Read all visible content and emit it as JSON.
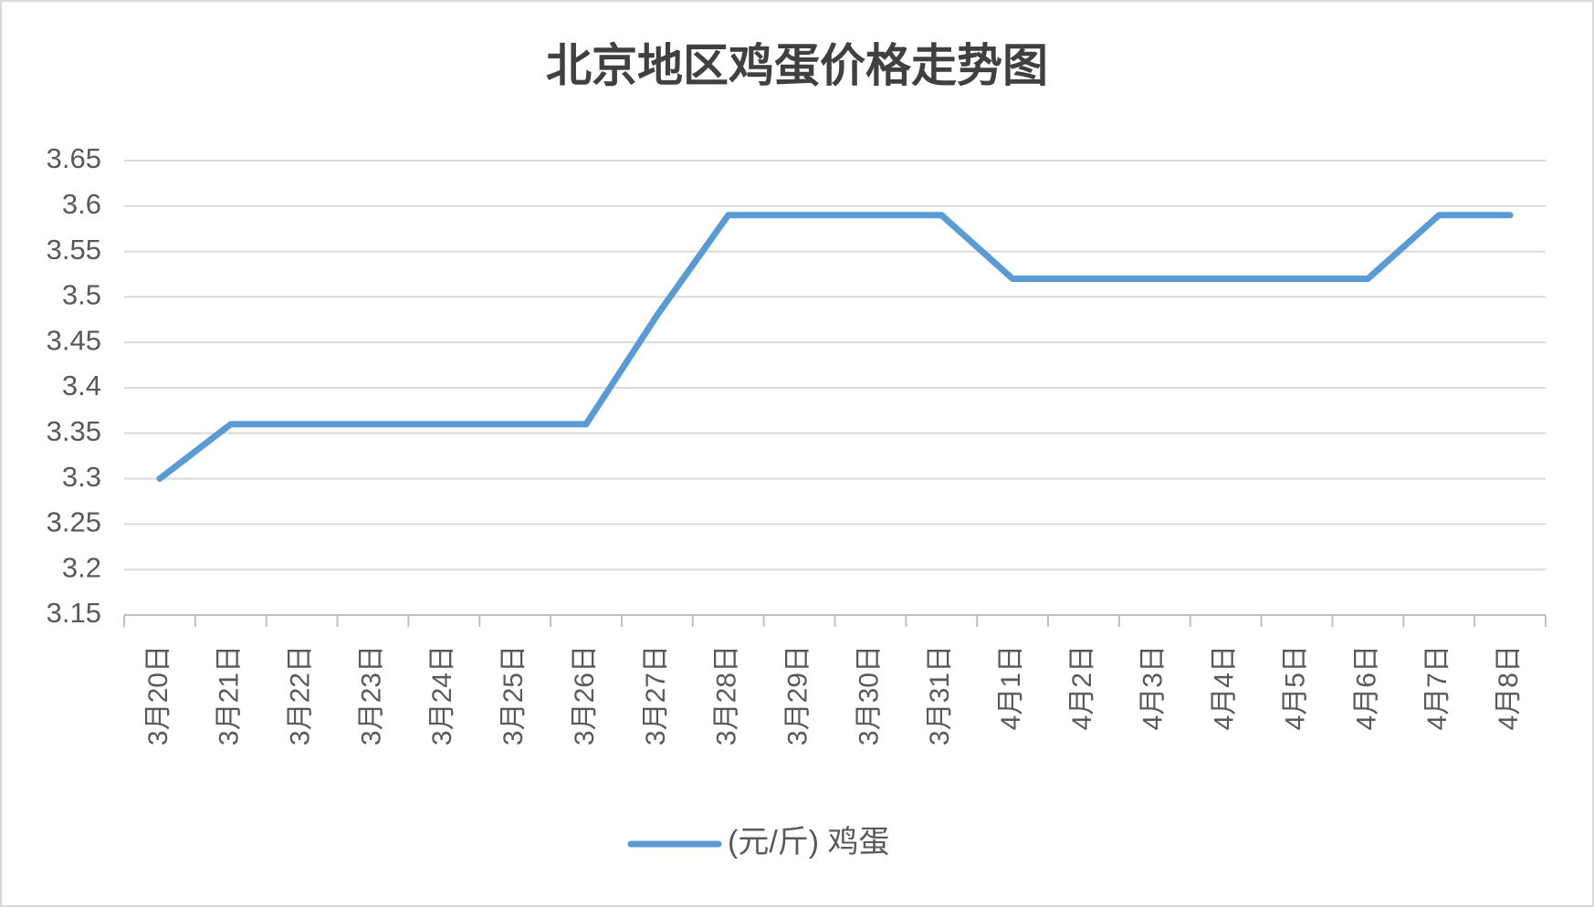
{
  "chart_data": {
    "type": "line",
    "title": "北京地区鸡蛋价格走势图",
    "categories": [
      "3月20日",
      "3月21日",
      "3月22日",
      "3月23日",
      "3月24日",
      "3月25日",
      "3月26日",
      "3月27日",
      "3月28日",
      "3月29日",
      "3月30日",
      "3月31日",
      "4月1日",
      "4月2日",
      "4月3日",
      "4月4日",
      "4月5日",
      "4月6日",
      "4月7日",
      "4月8日"
    ],
    "series": [
      {
        "name": "(元/斤) 鸡蛋",
        "color": "#5b9bd5",
        "values": [
          3.3,
          3.36,
          3.36,
          3.36,
          3.36,
          3.36,
          3.36,
          3.48,
          3.59,
          3.59,
          3.59,
          3.59,
          3.52,
          3.52,
          3.52,
          3.52,
          3.52,
          3.52,
          3.59,
          3.59
        ]
      }
    ],
    "ylim": [
      3.15,
      3.65
    ],
    "yticks": [
      3.15,
      3.2,
      3.25,
      3.3,
      3.35,
      3.4,
      3.45,
      3.5,
      3.55,
      3.6,
      3.65
    ],
    "grid": true
  }
}
